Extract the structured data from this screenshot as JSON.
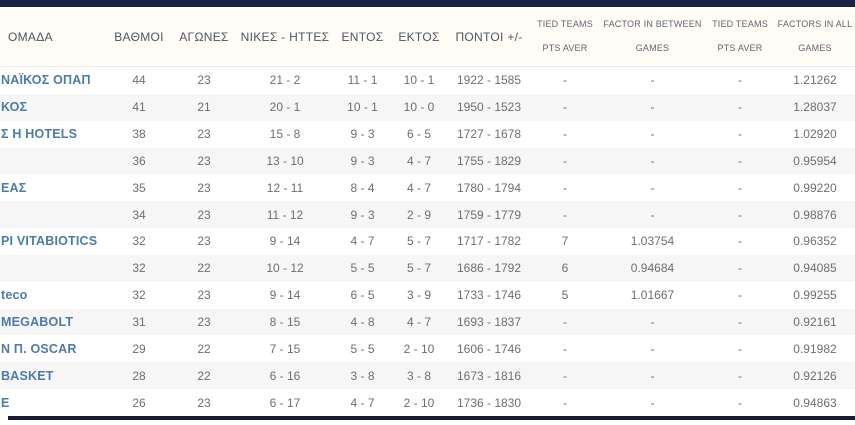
{
  "colors": {
    "top_bar_navy": "#1b2240",
    "bottom_bar_navy": "#171c33",
    "team_link_blue": "#4d7ba8",
    "row_alt_gray": "#f7f6f7",
    "header_text": "#4c5661",
    "cell_text": "#6e6e6e"
  },
  "table": {
    "columns": [
      {
        "key": "team",
        "label": "ΟΜΑΔΑ"
      },
      {
        "key": "points",
        "label": "ΒΑΘΜΟΙ"
      },
      {
        "key": "games",
        "label": "ΑΓΩΝΕΣ"
      },
      {
        "key": "wins-losses",
        "label": "ΝΙΚΕΣ - ΗΤΤΕΣ"
      },
      {
        "key": "home",
        "label": "ΕΝΤΟΣ"
      },
      {
        "key": "away",
        "label": "ΕΚΤΟΣ"
      },
      {
        "key": "points-plus-minus",
        "label": "ΠΟΝΤΟΙ +/-"
      },
      {
        "key": "tied-teams-pts-aver-1",
        "label": "TIED TEAMS",
        "label2": "PTS AVER"
      },
      {
        "key": "factor-in-between-games",
        "label": "FACTOR IN BETWEEN",
        "label2": "GAMES"
      },
      {
        "key": "tied-teams-pts-aver-2",
        "label": "TIED TEAMS",
        "label2": "PTS AVER"
      },
      {
        "key": "factors-in-all-games",
        "label": "FACTORS IN ALL",
        "label2": "GAMES"
      }
    ],
    "rows": [
      [
        "ΝΑΪΚΟΣ ΟΠΑΠ",
        "44",
        "23",
        "21 - 2",
        "11 - 1",
        "10 - 1",
        "1922 - 1585",
        "-",
        "-",
        "-",
        "1.21262"
      ],
      [
        "ΚΟΣ",
        "41",
        "21",
        "20 - 1",
        "10 - 1",
        "10 - 0",
        "1950 - 1523",
        "-",
        "-",
        "-",
        "1.28037"
      ],
      [
        "Σ Η HOTELS",
        "38",
        "23",
        "15 - 8",
        "9 - 3",
        "6 - 5",
        "1727 - 1678",
        "-",
        "-",
        "-",
        "1.02920"
      ],
      [
        "",
        "36",
        "23",
        "13 - 10",
        "9 - 3",
        "4 - 7",
        "1755 - 1829",
        "-",
        "-",
        "-",
        "0.95954"
      ],
      [
        "ΕΑΣ",
        "35",
        "23",
        "12 - 11",
        "8 - 4",
        "4 - 7",
        "1780 - 1794",
        "-",
        "-",
        "-",
        "0.99220"
      ],
      [
        "",
        "34",
        "23",
        "11 - 12",
        "9 - 3",
        "2 - 9",
        "1759 - 1779",
        "-",
        "-",
        "-",
        "0.98876"
      ],
      [
        "ΡΙ VITABIOTICS",
        "32",
        "23",
        "9 - 14",
        "4 - 7",
        "5 - 7",
        "1717 - 1782",
        "7",
        "1.03754",
        "-",
        "0.96352"
      ],
      [
        "",
        "32",
        "22",
        "10 - 12",
        "5 - 5",
        "5 - 7",
        "1686 - 1792",
        "6",
        "0.94684",
        "-",
        "0.94085"
      ],
      [
        "teco",
        "32",
        "23",
        "9 - 14",
        "6 - 5",
        "3 - 9",
        "1733 - 1746",
        "5",
        "1.01667",
        "-",
        "0.99255"
      ],
      [
        "MEGABOLT",
        "31",
        "23",
        "8 - 15",
        "4 - 8",
        "4 - 7",
        "1693 - 1837",
        "-",
        "-",
        "-",
        "0.92161"
      ],
      [
        "Ν Π. OSCAR",
        "29",
        "22",
        "7 - 15",
        "5 - 5",
        "2 - 10",
        "1606 - 1746",
        "-",
        "-",
        "-",
        "0.91982"
      ],
      [
        "BASKET",
        "28",
        "22",
        "6 - 16",
        "3 - 8",
        "3 - 8",
        "1673 - 1816",
        "-",
        "-",
        "-",
        "0.92126"
      ],
      [
        "Ε",
        "26",
        "23",
        "6 - 17",
        "4 - 7",
        "2 - 10",
        "1736 - 1830",
        "-",
        "-",
        "-",
        "0.94863"
      ]
    ]
  }
}
